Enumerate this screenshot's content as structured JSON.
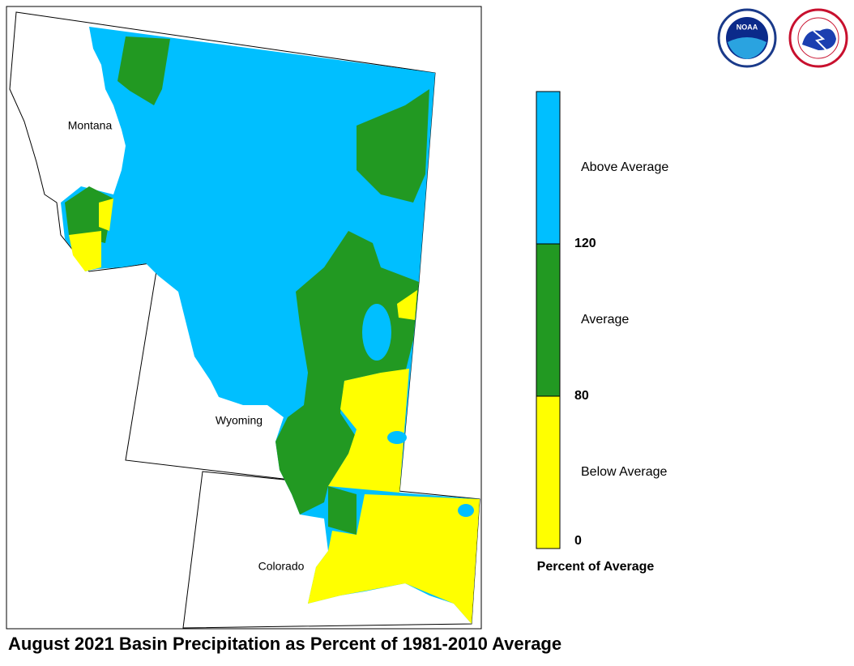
{
  "map": {
    "title": "August 2021 Basin Precipitation as Percent of 1981-2010 Average",
    "states": [
      "Montana",
      "Wyoming",
      "Colorado"
    ],
    "legend": {
      "title": "Percent of Average",
      "classes": [
        {
          "label": "Above Average",
          "color": "#00bfff"
        },
        {
          "label": "Average",
          "color": "#229922"
        },
        {
          "label": "Below Average",
          "color": "#ffff00"
        }
      ],
      "ticks": [
        120,
        80,
        0
      ]
    },
    "logos": [
      "NOAA"
    ]
  }
}
